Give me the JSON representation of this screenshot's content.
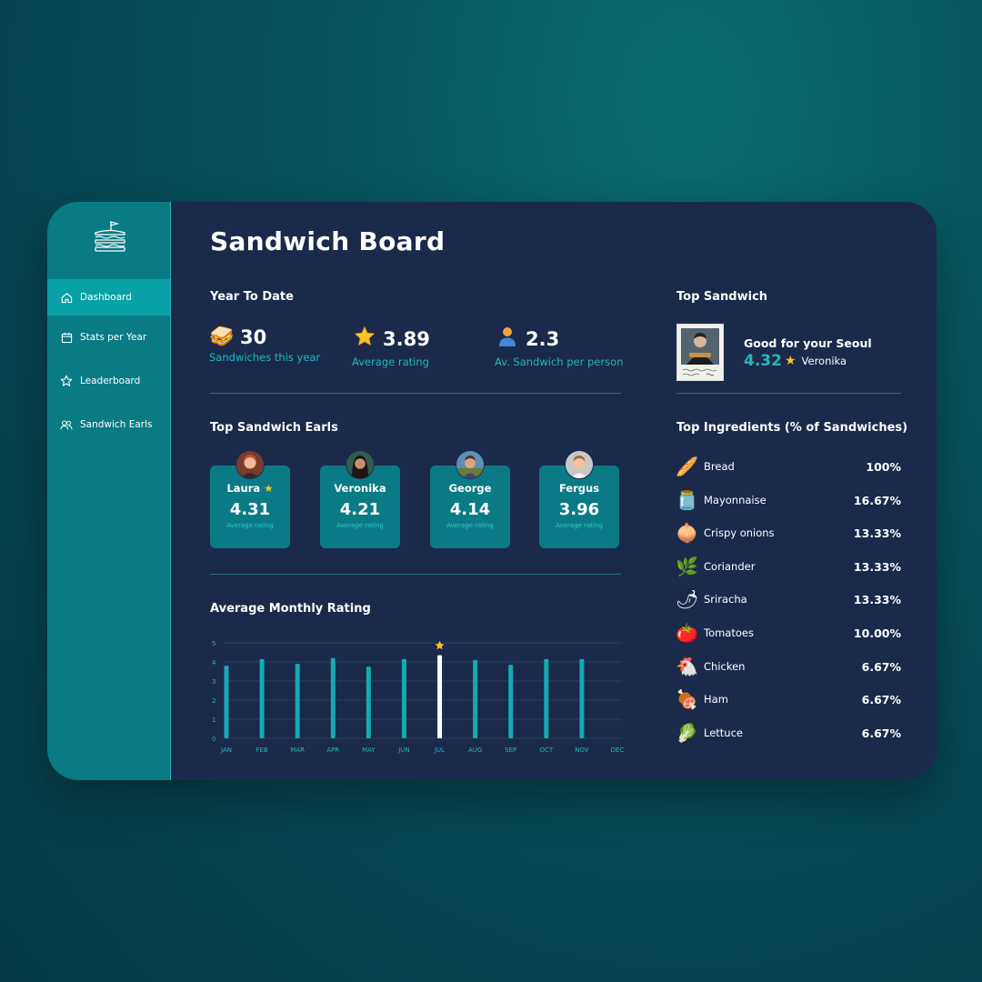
{
  "app": {
    "title": "Sandwich Board"
  },
  "sidebar": {
    "items": [
      {
        "label": "Dashboard",
        "icon": "home-icon",
        "active": true
      },
      {
        "label": "Stats per Year",
        "icon": "calendar-icon",
        "active": false
      },
      {
        "label": "Leaderboard",
        "icon": "star-icon",
        "active": false
      },
      {
        "label": "Sandwich Earls",
        "icon": "users-icon",
        "active": false
      }
    ]
  },
  "ytd": {
    "heading": "Year To Date",
    "stats": [
      {
        "icon": "sandwich-icon",
        "emoji": "🥪",
        "value": "30",
        "label": "Sandwiches this year"
      },
      {
        "icon": "star-icon",
        "emoji": "⭐",
        "value": "3.89",
        "label": "Average rating"
      },
      {
        "icon": "person-icon",
        "emoji": "👤",
        "value": "2.3",
        "label": "Av. Sandwich per person"
      }
    ]
  },
  "earls": {
    "heading": "Top Sandwich Earls",
    "items": [
      {
        "name": "Laura",
        "star": true,
        "rating": "4.31",
        "label": "Average rating"
      },
      {
        "name": "Veronika",
        "star": false,
        "rating": "4.21",
        "label": "Average rating"
      },
      {
        "name": "George",
        "star": false,
        "rating": "4.14",
        "label": "Average rating"
      },
      {
        "name": "Fergus",
        "star": false,
        "rating": "3.96",
        "label": "Average rating"
      }
    ]
  },
  "top_sandwich": {
    "heading": "Top Sandwich",
    "name": "Good for your Seoul",
    "rating": "4.32",
    "author": "Veronika"
  },
  "ingredients": {
    "heading": "Top Ingredients (% of Sandwiches)",
    "items": [
      {
        "name": "Bread",
        "emoji": "🥖",
        "pct": "100%"
      },
      {
        "name": "Mayonnaise",
        "emoji": "🫙",
        "pct": "16.67%"
      },
      {
        "name": "Crispy onions",
        "emoji": "🧅",
        "pct": "13.33%"
      },
      {
        "name": "Coriander",
        "emoji": "🌿",
        "pct": "13.33%"
      },
      {
        "name": "Sriracha",
        "emoji": "🌶",
        "pct": "13.33%"
      },
      {
        "name": "Tomatoes",
        "emoji": "🍅",
        "pct": "10.00%"
      },
      {
        "name": "Chicken",
        "emoji": "🐔",
        "pct": "6.67%"
      },
      {
        "name": "Ham",
        "emoji": "🍖",
        "pct": "6.67%"
      },
      {
        "name": "Lettuce",
        "emoji": "🥬",
        "pct": "6.67%"
      }
    ]
  },
  "monthly": {
    "heading": "Average Monthly Rating"
  },
  "colors": {
    "accent": "#0aa0a8",
    "bar": "#14aab4",
    "highlight_bar": "#ffffff",
    "star": "#f7c325"
  },
  "chart_data": {
    "type": "bar",
    "categories": [
      "JAN",
      "FEB",
      "MAR",
      "APR",
      "MAY",
      "JUN",
      "JUL",
      "AUG",
      "SEP",
      "OCT",
      "NOV",
      "DEC"
    ],
    "values": [
      3.8,
      4.15,
      3.9,
      4.2,
      3.75,
      4.15,
      4.35,
      4.1,
      3.85,
      4.15,
      4.15,
      null
    ],
    "highlight": "JUL",
    "yticks": [
      0,
      1,
      2,
      3,
      4,
      5
    ],
    "ylim": [
      0,
      5
    ],
    "grid": true
  }
}
